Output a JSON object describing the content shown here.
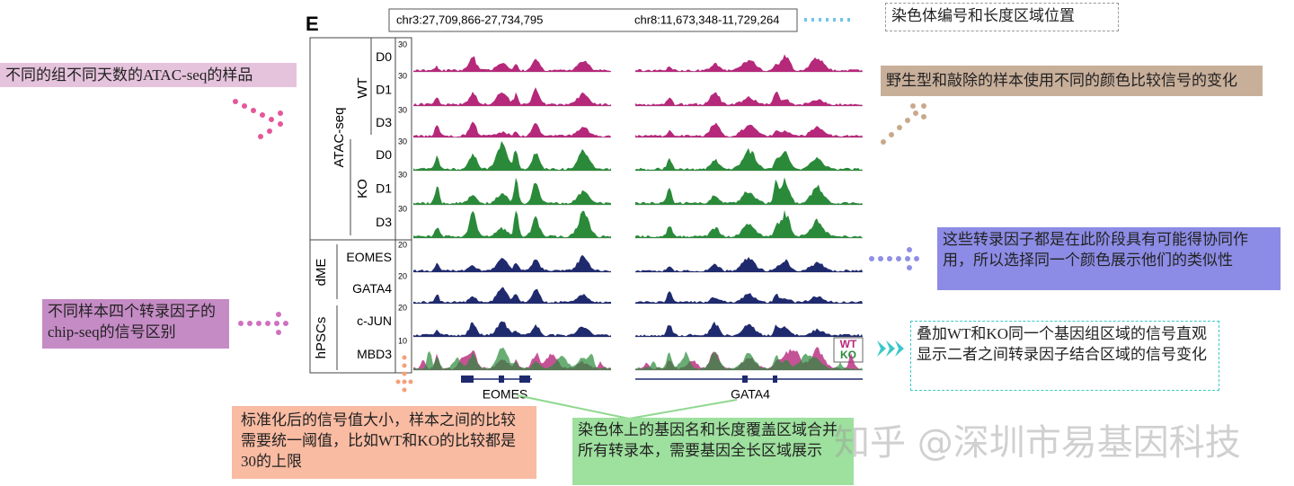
{
  "panel_label": "E",
  "coordinates": {
    "left": "chr3:27,709,866-27,734,795",
    "right": "chr8:11,673,348-11,729,264"
  },
  "groups": {
    "atac": "ATAC-seq",
    "wt": "WT",
    "ko": "KO",
    "dme": "dME",
    "hpscs": "hPSCs"
  },
  "tracks": [
    {
      "label": "D0",
      "scale": 30
    },
    {
      "label": "D1",
      "scale": 30
    },
    {
      "label": "D3",
      "scale": 30
    },
    {
      "label": "D0",
      "scale": 30
    },
    {
      "label": "D1",
      "scale": 30
    },
    {
      "label": "D3",
      "scale": 30
    },
    {
      "label": "EOMES",
      "scale": 20
    },
    {
      "label": "GATA4",
      "scale": 20
    },
    {
      "label": "c-JUN",
      "scale": 20
    },
    {
      "label": "MBD3",
      "scale": 10
    }
  ],
  "genes": [
    "EOMES",
    "GATA4"
  ],
  "overlay_legend": {
    "wt": "WT",
    "ko": "KO"
  },
  "annotations": {
    "chrom_position": "染色体编号和长度区域位置",
    "atac_samples": "不同的组不同天数的ATAC-seq的样品",
    "color_compare": "野生型和敲除的样本使用不同的颜色比较信号的变化",
    "same_color": "这些转录因子都是在此阶段具有可能得协同作用，所以选择同一个颜色展示他们的类似性",
    "chip_samples": "不同样本四个转录因子的chip-seq的信号区别",
    "overlay": "叠加WT和KO同一个基因组区域的信号直观显示二者之间转录因子结合区域的信号变化",
    "normalization": "标准化后的信号值大小，样本之间的比较需要统一阈值，比如WT和KO的比较都是30的上限",
    "gene_track": "染色体上的基因名和长度覆盖区域合并所有转录本，需要基因全长区域展示"
  },
  "watermark": "知乎 @深圳市易基因科技"
}
